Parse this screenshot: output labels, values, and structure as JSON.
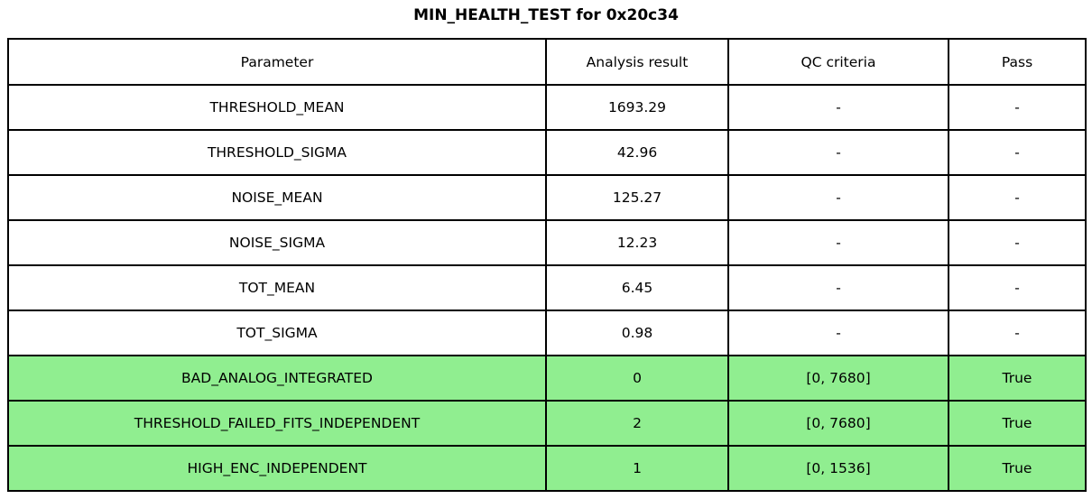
{
  "title": "MIN_HEALTH_TEST for 0x20c34",
  "table": {
    "columns": [
      "Parameter",
      "Analysis result",
      "QC criteria",
      "Pass"
    ],
    "rows": [
      {
        "cells": [
          "THRESHOLD_MEAN",
          "1693.29",
          "-",
          "-"
        ],
        "highlight": false
      },
      {
        "cells": [
          "THRESHOLD_SIGMA",
          "42.96",
          "-",
          "-"
        ],
        "highlight": false
      },
      {
        "cells": [
          "NOISE_MEAN",
          "125.27",
          "-",
          "-"
        ],
        "highlight": false
      },
      {
        "cells": [
          "NOISE_SIGMA",
          "12.23",
          "-",
          "-"
        ],
        "highlight": false
      },
      {
        "cells": [
          "TOT_MEAN",
          "6.45",
          "-",
          "-"
        ],
        "highlight": false
      },
      {
        "cells": [
          "TOT_SIGMA",
          "0.98",
          "-",
          "-"
        ],
        "highlight": false
      },
      {
        "cells": [
          "BAD_ANALOG_INTEGRATED",
          "0",
          "[0, 7680]",
          "True"
        ],
        "highlight": true
      },
      {
        "cells": [
          "THRESHOLD_FAILED_FITS_INDEPENDENT",
          "2",
          "[0, 7680]",
          "True"
        ],
        "highlight": true
      },
      {
        "cells": [
          "HIGH_ENC_INDEPENDENT",
          "1",
          "[0, 1536]",
          "True"
        ],
        "highlight": true
      }
    ]
  },
  "colors": {
    "pass_green": "#90ee90",
    "border": "#000000",
    "background": "#ffffff",
    "text": "#000000"
  },
  "chart_data": {
    "type": "table",
    "title": "MIN_HEALTH_TEST for 0x20c34",
    "columns": [
      "Parameter",
      "Analysis result",
      "QC criteria",
      "Pass"
    ],
    "rows": [
      [
        "THRESHOLD_MEAN",
        "1693.29",
        "-",
        "-"
      ],
      [
        "THRESHOLD_SIGMA",
        "42.96",
        "-",
        "-"
      ],
      [
        "NOISE_MEAN",
        "125.27",
        "-",
        "-"
      ],
      [
        "NOISE_SIGMA",
        "12.23",
        "-",
        "-"
      ],
      [
        "TOT_MEAN",
        "6.45",
        "-",
        "-"
      ],
      [
        "TOT_SIGMA",
        "0.98",
        "-",
        "-"
      ],
      [
        "BAD_ANALOG_INTEGRATED",
        "0",
        "[0, 7680]",
        "True"
      ],
      [
        "THRESHOLD_FAILED_FITS_INDEPENDENT",
        "2",
        "[0, 7680]",
        "True"
      ],
      [
        "HIGH_ENC_INDEPENDENT",
        "1",
        "[0, 1536]",
        "True"
      ]
    ],
    "highlighted_rows": [
      6,
      7,
      8
    ],
    "highlight_color": "#90ee90",
    "layout": "header row on top, all cells center-aligned, black grid borders"
  }
}
